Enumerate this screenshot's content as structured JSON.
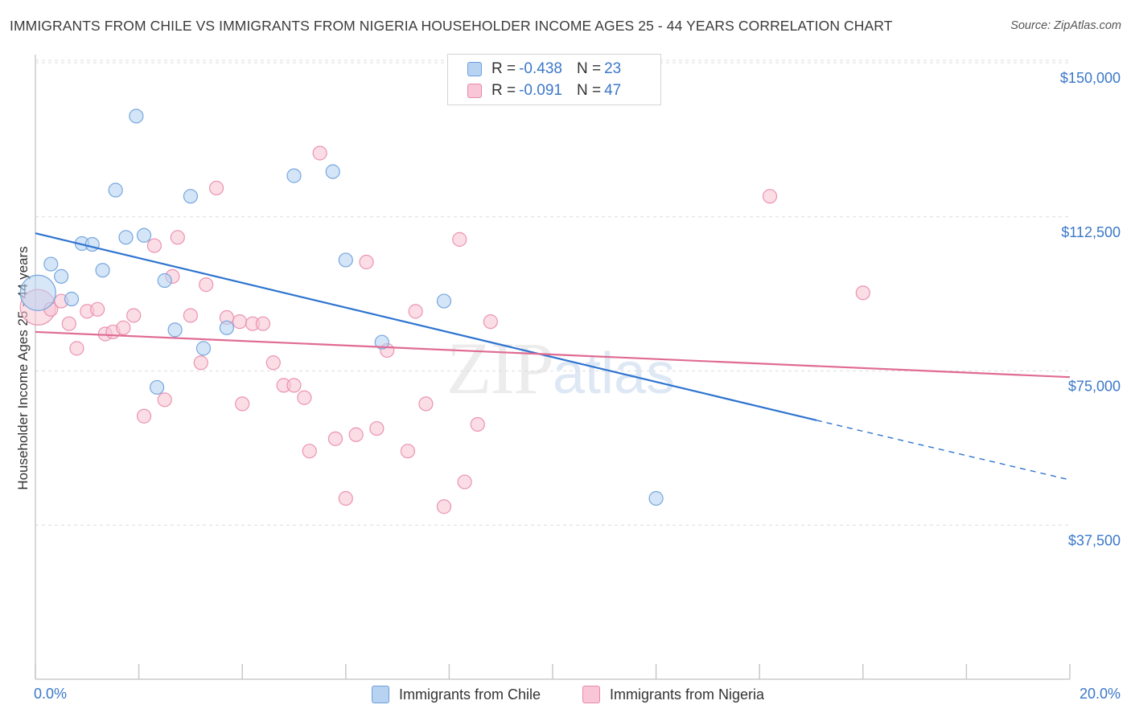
{
  "title": "IMMIGRANTS FROM CHILE VS IMMIGRANTS FROM NIGERIA HOUSEHOLDER INCOME AGES 25 - 44 YEARS CORRELATION CHART",
  "source": "Source: ZipAtlas.com",
  "watermark": {
    "main": "ZIP",
    "sub": "atlas"
  },
  "legend": {
    "chile": {
      "r_label": "R =",
      "r_value": "-0.438",
      "n_label": "N =",
      "n_value": "23"
    },
    "nigeria": {
      "r_label": "R =",
      "r_value": "-0.091",
      "n_label": "N =",
      "n_value": "47"
    }
  },
  "colors": {
    "chile_fill": "#b8d3f2",
    "chile_stroke": "#6a9fdc",
    "chile_line": "#2e74d0",
    "nigeria_fill": "#f8c6d6",
    "nigeria_stroke": "#e98aaa",
    "nigeria_line": "#e06b93",
    "tick_label": "#3b78c9",
    "grid": "#dddddd"
  },
  "chart_data": {
    "type": "scatter",
    "xlabel": "",
    "ylabel": "Householder Income Ages 25 - 44 years",
    "xlim": [
      0,
      20
    ],
    "ylim": [
      0,
      150000
    ],
    "x_tick_labels": [
      "0.0%",
      "20.0%"
    ],
    "y_ticks": [
      37500,
      75000,
      112500,
      150000
    ],
    "y_tick_labels": [
      "$37,500",
      "$75,000",
      "$112,500",
      "$150,000"
    ],
    "grid": true,
    "legend_position": "top-center",
    "series": [
      {
        "name": "Immigrants from Chile",
        "points": [
          {
            "x": 0.05,
            "y": 94000,
            "big": true
          },
          {
            "x": 0.3,
            "y": 101000
          },
          {
            "x": 0.5,
            "y": 98000
          },
          {
            "x": 0.7,
            "y": 92500
          },
          {
            "x": 0.9,
            "y": 106000
          },
          {
            "x": 1.1,
            "y": 105800
          },
          {
            "x": 1.3,
            "y": 99500
          },
          {
            "x": 1.55,
            "y": 119000
          },
          {
            "x": 1.95,
            "y": 137000
          },
          {
            "x": 1.75,
            "y": 107500
          },
          {
            "x": 2.1,
            "y": 108000
          },
          {
            "x": 2.35,
            "y": 71000
          },
          {
            "x": 2.5,
            "y": 97000
          },
          {
            "x": 2.7,
            "y": 85000
          },
          {
            "x": 3.0,
            "y": 117500
          },
          {
            "x": 3.25,
            "y": 80500
          },
          {
            "x": 3.7,
            "y": 85500
          },
          {
            "x": 5.0,
            "y": 122500
          },
          {
            "x": 5.75,
            "y": 123500
          },
          {
            "x": 6.0,
            "y": 102000
          },
          {
            "x": 6.7,
            "y": 82000
          },
          {
            "x": 7.9,
            "y": 92000
          },
          {
            "x": 12.0,
            "y": 44000
          }
        ],
        "trend": {
          "x0": 0,
          "y0": 108500,
          "x1": 15.1,
          "y1": 63000,
          "dash_x1": 20,
          "dash_y1": 48500
        }
      },
      {
        "name": "Immigrants from Nigeria",
        "points": [
          {
            "x": 0.05,
            "y": 90500,
            "big": true
          },
          {
            "x": 0.3,
            "y": 90000
          },
          {
            "x": 0.5,
            "y": 92000
          },
          {
            "x": 0.65,
            "y": 86500
          },
          {
            "x": 0.8,
            "y": 80500
          },
          {
            "x": 1.0,
            "y": 89500
          },
          {
            "x": 1.2,
            "y": 90000
          },
          {
            "x": 1.35,
            "y": 84000
          },
          {
            "x": 1.5,
            "y": 84500
          },
          {
            "x": 1.7,
            "y": 85500
          },
          {
            "x": 1.9,
            "y": 88500
          },
          {
            "x": 2.1,
            "y": 64000
          },
          {
            "x": 2.3,
            "y": 105500
          },
          {
            "x": 2.5,
            "y": 68000
          },
          {
            "x": 2.65,
            "y": 98000
          },
          {
            "x": 2.75,
            "y": 107500
          },
          {
            "x": 3.0,
            "y": 88500
          },
          {
            "x": 3.3,
            "y": 96000
          },
          {
            "x": 3.2,
            "y": 77000
          },
          {
            "x": 3.5,
            "y": 119500
          },
          {
            "x": 3.7,
            "y": 88000
          },
          {
            "x": 3.95,
            "y": 87000
          },
          {
            "x": 4.0,
            "y": 67000
          },
          {
            "x": 4.2,
            "y": 86500
          },
          {
            "x": 4.4,
            "y": 86500
          },
          {
            "x": 4.6,
            "y": 77000
          },
          {
            "x": 4.8,
            "y": 71500
          },
          {
            "x": 5.0,
            "y": 71500
          },
          {
            "x": 5.2,
            "y": 68500
          },
          {
            "x": 5.3,
            "y": 55500
          },
          {
            "x": 5.5,
            "y": 128000
          },
          {
            "x": 5.8,
            "y": 58500
          },
          {
            "x": 6.0,
            "y": 44000
          },
          {
            "x": 6.2,
            "y": 59500
          },
          {
            "x": 6.4,
            "y": 101500
          },
          {
            "x": 6.6,
            "y": 61000
          },
          {
            "x": 6.8,
            "y": 80000
          },
          {
            "x": 7.2,
            "y": 55500
          },
          {
            "x": 7.35,
            "y": 89500
          },
          {
            "x": 7.55,
            "y": 67000
          },
          {
            "x": 7.9,
            "y": 42000
          },
          {
            "x": 8.2,
            "y": 107000
          },
          {
            "x": 8.3,
            "y": 48000
          },
          {
            "x": 8.55,
            "y": 62000
          },
          {
            "x": 8.8,
            "y": 87000
          },
          {
            "x": 14.2,
            "y": 117500
          },
          {
            "x": 16.0,
            "y": 94000
          }
        ],
        "trend": {
          "x0": 0,
          "y0": 84500,
          "x1": 20,
          "y1": 73500
        }
      }
    ]
  }
}
